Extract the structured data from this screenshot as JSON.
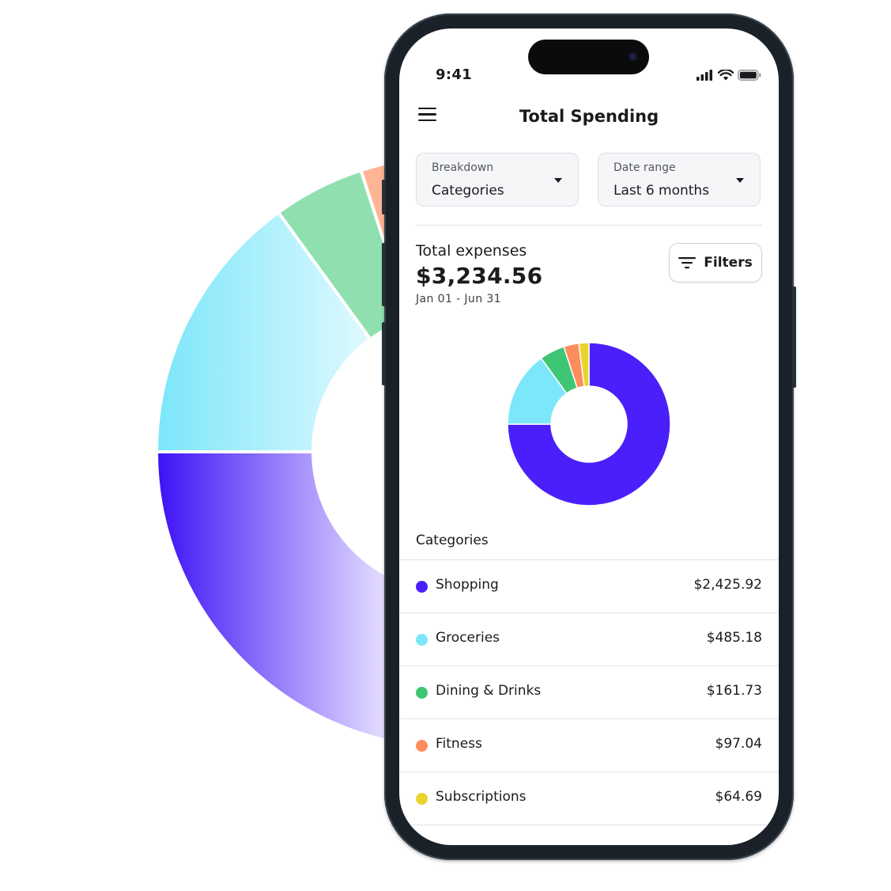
{
  "status_bar": {
    "time": "9:41"
  },
  "header": {
    "title": "Total Spending"
  },
  "breakdown_select": {
    "label": "Breakdown",
    "value": "Categories"
  },
  "date_range_select": {
    "label": "Date range",
    "value": "Last 6 months"
  },
  "summary": {
    "label": "Total expenses",
    "amount": "$3,234.56",
    "range": "Jan 01 - Jun 31",
    "filters_label": "Filters"
  },
  "categories_heading": "Categories",
  "categories": [
    {
      "name": "Shopping",
      "amount": "$2,425.92",
      "value": 2425.92,
      "color": "#4a1ffb"
    },
    {
      "name": "Groceries",
      "amount": "$485.18",
      "value": 485.18,
      "color": "#7ce6fa"
    },
    {
      "name": "Dining & Drinks",
      "amount": "$161.73",
      "value": 161.73,
      "color": "#3fc674"
    },
    {
      "name": "Fitness",
      "amount": "$97.04",
      "value": 97.04,
      "color": "#ff8c5c"
    },
    {
      "name": "Subscriptions",
      "amount": "$64.69",
      "value": 64.69,
      "color": "#e9d42c"
    }
  ],
  "icons": {
    "menu": "hamburger-menu-icon",
    "filters": "filter-lines-icon",
    "signal": "cellular-signal-icon",
    "wifi": "wifi-icon",
    "battery": "battery-icon",
    "dropdown": "caret-down-icon"
  }
}
